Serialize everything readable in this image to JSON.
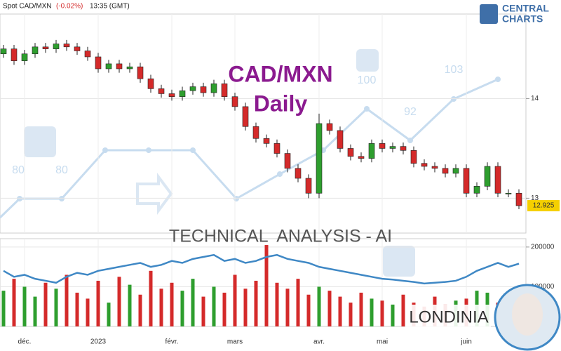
{
  "header": {
    "symbol": "Spot CAD/MXN",
    "change": "(-0.02%)",
    "time": "13:35 (GMT)"
  },
  "logo": {
    "line1": "CENTRAL",
    "line2": "CHARTS"
  },
  "overlay": {
    "title": "CAD/MXN",
    "subtitle": "Daily",
    "banner": "TECHNICAL  ANALYSIS - AI",
    "brand": "LONDINIA",
    "watermark_labels": [
      "80",
      "80",
      "100",
      "92",
      "103"
    ]
  },
  "chart_data": {
    "type": "candlestick",
    "categories": [
      null,
      null,
      "déc.",
      null,
      null,
      null,
      null,
      null,
      null,
      "2023",
      null,
      null,
      null,
      null,
      null,
      null,
      "févr.",
      null,
      null,
      null,
      null,
      null,
      "mars",
      null,
      null,
      null,
      null,
      null,
      null,
      null,
      "avr.",
      null,
      null,
      null,
      null,
      null,
      "mai",
      null,
      null,
      null,
      null,
      null,
      null,
      null,
      "juin",
      null,
      null,
      null,
      null,
      null
    ],
    "candles": {
      "open": [
        14.45,
        14.5,
        14.38,
        14.45,
        14.52,
        14.5,
        14.55,
        14.52,
        14.48,
        14.42,
        14.3,
        14.35,
        14.3,
        14.32,
        14.2,
        14.1,
        14.05,
        14.02,
        14.08,
        14.12,
        14.06,
        14.15,
        14.02,
        13.92,
        13.72,
        13.6,
        13.55,
        13.45,
        13.3,
        13.2,
        13.05,
        13.75,
        13.68,
        13.5,
        13.42,
        13.4,
        13.55,
        13.5,
        13.52,
        13.48,
        13.35,
        13.32,
        13.3,
        13.25,
        13.3,
        13.05,
        13.12,
        13.32,
        13.05,
        13.05
      ],
      "high": [
        14.54,
        14.54,
        14.49,
        14.56,
        14.56,
        14.59,
        14.59,
        14.56,
        14.52,
        14.46,
        14.39,
        14.39,
        14.36,
        14.36,
        14.24,
        14.14,
        14.09,
        14.12,
        14.16,
        14.16,
        14.19,
        14.19,
        14.06,
        13.96,
        13.76,
        13.64,
        13.59,
        13.49,
        13.34,
        13.24,
        13.85,
        13.79,
        13.72,
        13.54,
        13.46,
        13.59,
        13.59,
        13.56,
        13.56,
        13.52,
        13.39,
        13.36,
        13.34,
        13.34,
        13.34,
        13.16,
        13.36,
        13.36,
        13.09,
        13.09
      ],
      "low": [
        14.41,
        14.34,
        14.34,
        14.41,
        14.46,
        14.46,
        14.48,
        14.44,
        14.38,
        14.26,
        14.26,
        14.26,
        14.26,
        14.16,
        14.06,
        14.01,
        13.98,
        13.98,
        14.04,
        14.02,
        14.02,
        13.98,
        13.88,
        13.68,
        13.56,
        13.51,
        13.41,
        13.26,
        13.16,
        13.0,
        13.0,
        13.64,
        13.46,
        13.38,
        13.36,
        13.36,
        13.46,
        13.46,
        13.44,
        13.31,
        13.28,
        13.26,
        13.21,
        13.21,
        13.01,
        13.01,
        13.08,
        13.01,
        13.01,
        12.89
      ],
      "close": [
        14.5,
        14.38,
        14.45,
        14.52,
        14.5,
        14.55,
        14.52,
        14.48,
        14.42,
        14.3,
        14.35,
        14.3,
        14.32,
        14.2,
        14.1,
        14.05,
        14.02,
        14.08,
        14.12,
        14.06,
        14.15,
        14.02,
        13.92,
        13.72,
        13.6,
        13.55,
        13.45,
        13.3,
        13.2,
        13.05,
        13.75,
        13.68,
        13.5,
        13.42,
        13.4,
        13.55,
        13.5,
        13.52,
        13.48,
        13.35,
        13.32,
        13.3,
        13.25,
        13.3,
        13.05,
        13.12,
        13.32,
        13.05,
        13.05,
        12.925
      ]
    },
    "up_color": "#2e9e2e",
    "down_color": "#d42a2a",
    "grid": true,
    "ylim": [
      12.65,
      14.85
    ],
    "yticks": [
      14,
      13
    ],
    "volume": {
      "values": [
        90000,
        120000,
        100000,
        75000,
        110000,
        95000,
        130000,
        85000,
        70000,
        115000,
        60000,
        125000,
        105000,
        80000,
        140000,
        95000,
        110000,
        90000,
        120000,
        75000,
        100000,
        85000,
        130000,
        95000,
        115000,
        205000,
        110000,
        95000,
        120000,
        80000,
        100000,
        90000,
        75000,
        60000,
        85000,
        70000,
        65000,
        55000,
        80000,
        60000,
        50000,
        75000,
        55000,
        65000,
        70000,
        90000,
        85000,
        60000,
        70000,
        45000
      ],
      "line": [
        140000,
        125000,
        130000,
        120000,
        115000,
        110000,
        125000,
        135000,
        130000,
        140000,
        145000,
        150000,
        155000,
        160000,
        150000,
        155000,
        165000,
        160000,
        170000,
        175000,
        180000,
        165000,
        170000,
        160000,
        165000,
        175000,
        180000,
        170000,
        165000,
        160000,
        150000,
        145000,
        140000,
        135000,
        130000,
        125000,
        120000,
        118000,
        115000,
        112000,
        108000,
        110000,
        112000,
        115000,
        125000,
        140000,
        150000,
        160000,
        150000,
        158000
      ],
      "line_color": "#3f88c5",
      "ylim": [
        0,
        221000
      ],
      "yticks": [
        200000,
        100000
      ]
    }
  }
}
